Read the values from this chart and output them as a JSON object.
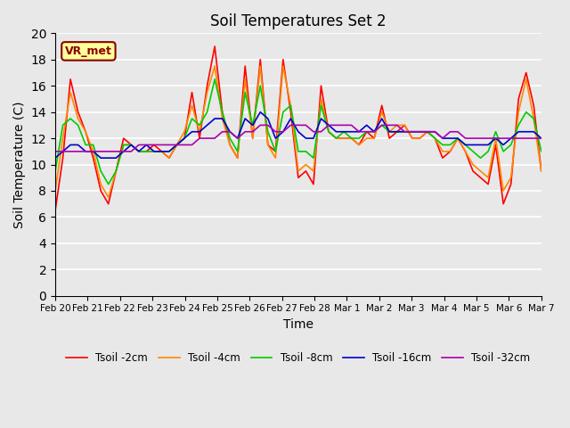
{
  "title": "Soil Temperatures Set 2",
  "xlabel": "Time",
  "ylabel": "Soil Temperature (C)",
  "ylim": [
    0,
    20
  ],
  "yticks": [
    0,
    2,
    4,
    6,
    8,
    10,
    12,
    14,
    16,
    18,
    20
  ],
  "annotation": "VR_met",
  "bg_color": "#e8e8e8",
  "line_colors": {
    "2cm": "#ff0000",
    "4cm": "#ff8800",
    "8cm": "#00cc00",
    "16cm": "#0000cc",
    "32cm": "#aa00aa"
  },
  "legend_labels": [
    "Tsoil -2cm",
    "Tsoil -4cm",
    "Tsoil -8cm",
    "Tsoil -16cm",
    "Tsoil -32cm"
  ],
  "x_tick_labels": [
    "Feb 20",
    "Feb 21",
    "Feb 22",
    "Feb 23",
    "Feb 24",
    "Feb 25",
    "Feb 26",
    "Feb 27",
    "Feb 28",
    "Mar 1",
    "Mar 2",
    "Mar 3",
    "Mar 4",
    "Mar 5",
    "Mar 6",
    "Mar 7"
  ],
  "tsoil_2cm": [
    6.5,
    10.5,
    16.5,
    14.0,
    12.5,
    10.5,
    8.0,
    7.0,
    9.5,
    12.0,
    11.5,
    11.0,
    11.0,
    11.5,
    11.0,
    10.5,
    11.5,
    12.0,
    15.5,
    12.0,
    16.0,
    19.0,
    14.0,
    11.5,
    10.5,
    17.5,
    12.0,
    18.0,
    11.5,
    11.0,
    18.0,
    14.0,
    9.0,
    9.5,
    8.5,
    16.0,
    12.5,
    12.0,
    12.0,
    12.0,
    11.5,
    12.5,
    12.0,
    14.5,
    12.0,
    12.5,
    13.0,
    12.0,
    12.0,
    12.5,
    12.0,
    10.5,
    11.0,
    12.0,
    11.0,
    9.5,
    9.0,
    8.5,
    11.5,
    7.0,
    8.5,
    15.0,
    17.0,
    14.5,
    9.5
  ],
  "tsoil_4cm": [
    8.0,
    12.0,
    15.5,
    13.5,
    12.5,
    11.0,
    8.5,
    7.5,
    9.5,
    11.5,
    11.5,
    11.0,
    11.0,
    11.0,
    11.0,
    10.5,
    11.5,
    12.5,
    14.5,
    12.5,
    15.5,
    17.5,
    13.5,
    11.5,
    10.5,
    16.5,
    12.0,
    17.5,
    11.5,
    10.5,
    17.5,
    14.5,
    9.5,
    10.0,
    9.5,
    15.0,
    12.5,
    12.0,
    12.0,
    12.0,
    11.5,
    12.0,
    12.0,
    14.0,
    12.5,
    13.0,
    13.0,
    12.0,
    12.0,
    12.5,
    12.0,
    11.0,
    11.0,
    12.0,
    11.0,
    10.0,
    9.5,
    9.0,
    12.0,
    8.0,
    9.0,
    14.0,
    16.5,
    13.5,
    9.5
  ],
  "tsoil_8cm": [
    9.5,
    13.0,
    13.5,
    13.0,
    11.5,
    11.5,
    9.5,
    8.5,
    9.5,
    11.5,
    11.5,
    11.0,
    11.0,
    11.0,
    11.0,
    11.0,
    11.5,
    12.0,
    13.5,
    13.0,
    14.0,
    16.5,
    14.0,
    12.0,
    11.0,
    15.5,
    13.0,
    16.0,
    12.5,
    11.0,
    14.0,
    14.5,
    11.0,
    11.0,
    10.5,
    14.5,
    12.5,
    12.0,
    12.5,
    12.0,
    12.0,
    12.5,
    12.5,
    13.0,
    12.5,
    12.5,
    12.5,
    12.5,
    12.5,
    12.5,
    12.0,
    11.5,
    11.5,
    12.0,
    11.5,
    11.0,
    10.5,
    11.0,
    12.5,
    11.0,
    11.5,
    13.0,
    14.0,
    13.5,
    11.0
  ],
  "tsoil_16cm": [
    10.5,
    11.0,
    11.5,
    11.5,
    11.0,
    11.0,
    10.5,
    10.5,
    10.5,
    11.0,
    11.5,
    11.0,
    11.5,
    11.0,
    11.0,
    11.0,
    11.5,
    12.0,
    12.5,
    12.5,
    13.0,
    13.5,
    13.5,
    12.5,
    12.0,
    13.5,
    13.0,
    14.0,
    13.5,
    12.0,
    12.5,
    13.5,
    12.5,
    12.0,
    12.0,
    13.5,
    13.0,
    12.5,
    12.5,
    12.5,
    12.5,
    13.0,
    12.5,
    13.5,
    12.5,
    12.5,
    12.5,
    12.5,
    12.5,
    12.5,
    12.5,
    12.0,
    12.0,
    12.0,
    11.5,
    11.5,
    11.5,
    11.5,
    12.0,
    11.5,
    12.0,
    12.5,
    12.5,
    12.5,
    12.0
  ],
  "tsoil_32cm": [
    11.0,
    11.0,
    11.0,
    11.0,
    11.0,
    11.0,
    11.0,
    11.0,
    11.0,
    11.0,
    11.0,
    11.5,
    11.5,
    11.5,
    11.5,
    11.5,
    11.5,
    11.5,
    11.5,
    12.0,
    12.0,
    12.0,
    12.5,
    12.5,
    12.0,
    12.5,
    12.5,
    13.0,
    13.0,
    12.5,
    12.5,
    13.0,
    13.0,
    13.0,
    12.5,
    12.5,
    13.0,
    13.0,
    13.0,
    13.0,
    12.5,
    12.5,
    12.5,
    13.0,
    13.0,
    13.0,
    12.5,
    12.5,
    12.5,
    12.5,
    12.5,
    12.0,
    12.5,
    12.5,
    12.0,
    12.0,
    12.0,
    12.0,
    12.0,
    12.0,
    12.0,
    12.0,
    12.0,
    12.0,
    12.0
  ]
}
